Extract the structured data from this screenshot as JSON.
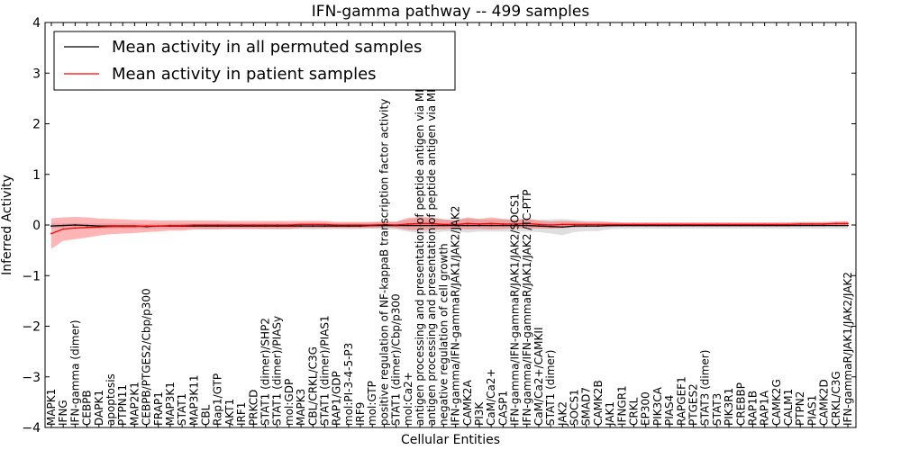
{
  "chart_data": {
    "type": "line",
    "title": "IFN-gamma pathway -- 499 samples",
    "xlabel": "Cellular Entities",
    "ylabel": "Inferred Activity",
    "ylim": [
      -4,
      4
    ],
    "yticks": [
      -4,
      -3,
      -2,
      -1,
      0,
      1,
      2,
      3,
      4
    ],
    "ytick_labels": [
      "−4",
      "−3",
      "−2",
      "−1",
      "0",
      "1",
      "2",
      "3",
      "4"
    ],
    "grid": false,
    "legend_position": "top-left",
    "categories": [
      "MAPK1",
      "IFNG",
      "IFN-gamma (dimer)",
      "CEBPB",
      "DAPK1",
      "apoptosis",
      "PTPN11",
      "MAP2K1",
      "CEBPB/PTGES2/Cbp/p300",
      "FRAP1",
      "MAP3K1",
      "STAT1",
      "MAP3K11",
      "CBL",
      "Rap1/GTP",
      "AKT1",
      "IRF1",
      "PRKCD",
      "STAT1 (dimer)/SHP2",
      "STAT1 (dimer)/PIASy",
      "mol:GDP",
      "MAPK3",
      "CBL/CRKL/C3G",
      "STAT1 (dimer)/PIAS1",
      "RAP1/GDP",
      "mol:PI-3-4-5-P3",
      "IRF9",
      "mol:GTP",
      "positive regulation of NF-kappaB transcription factor activity",
      "STAT1 (dimer)/Cbp/p300",
      "mol:Ca2+",
      "antigen processing and presentation of peptide antigen via MHC class I",
      "antigen processing and presentation of peptide antigen via MHC class II",
      "negative regulation of cell growth",
      "IFN-gamma/IFN-gammaR/JAK1/JAK2/JAK2",
      "CAMK2A",
      "PI3K",
      "CaM/Ca2+",
      "CASP1",
      "IFN-gamma/IFN-gammaR/JAK1/JAK2/SOCS1",
      "IFN-gamma/IFN-gammaR/JAK1/JAK2 /TC-PTP",
      "CaM/Ca2+/CAMKII",
      "STAT1 (dimer)",
      "JAK2",
      "SOCS1",
      "SMAD7",
      "CAMK2B",
      "JAK1",
      "IFNGR1",
      "CRKL",
      "EP300",
      "PIK3CA",
      "PIAS4",
      "RAPGEF1",
      "PTGES2",
      "STAT3 (dimer)",
      "STAT3",
      "PIK3R1",
      "CREBBP",
      "RAP1B",
      "RAP1A",
      "CAMK2G",
      "CALM1",
      "PTPN2",
      "PIAS1",
      "CAMK2D",
      "CRKL/C3G",
      "IFN-gammaR/JAK1/JAK2/JAK2"
    ],
    "series": [
      {
        "name": "Mean activity in all permuted samples",
        "color": "#000000",
        "values": [
          -0.02,
          -0.01,
          0.0,
          -0.01,
          -0.02,
          -0.02,
          -0.02,
          -0.02,
          -0.03,
          -0.02,
          -0.02,
          -0.02,
          -0.02,
          -0.02,
          -0.02,
          -0.02,
          -0.02,
          -0.02,
          -0.02,
          -0.02,
          -0.02,
          -0.02,
          -0.02,
          -0.02,
          -0.02,
          -0.02,
          -0.02,
          -0.01,
          -0.01,
          -0.01,
          -0.01,
          -0.01,
          -0.01,
          -0.01,
          -0.01,
          -0.01,
          -0.01,
          -0.01,
          -0.01,
          -0.01,
          -0.01,
          -0.02,
          -0.03,
          -0.04,
          -0.02,
          -0.02,
          -0.02,
          -0.01,
          -0.01,
          -0.01,
          -0.01,
          -0.01,
          -0.01,
          -0.01,
          -0.01,
          -0.01,
          -0.01,
          -0.01,
          -0.01,
          -0.01,
          -0.01,
          -0.01,
          -0.01,
          -0.01,
          -0.01,
          -0.01,
          -0.01,
          -0.01
        ],
        "band": [
          0.05,
          0.04,
          0.04,
          0.04,
          0.05,
          0.05,
          0.05,
          0.05,
          0.05,
          0.05,
          0.05,
          0.05,
          0.05,
          0.05,
          0.05,
          0.05,
          0.05,
          0.05,
          0.06,
          0.06,
          0.06,
          0.06,
          0.07,
          0.06,
          0.06,
          0.06,
          0.06,
          0.06,
          0.07,
          0.08,
          0.12,
          0.15,
          0.15,
          0.12,
          0.12,
          0.14,
          0.12,
          0.12,
          0.12,
          0.12,
          0.12,
          0.12,
          0.14,
          0.16,
          0.12,
          0.1,
          0.1,
          0.07,
          0.06,
          0.06,
          0.06,
          0.06,
          0.06,
          0.06,
          0.06,
          0.06,
          0.06,
          0.06,
          0.06,
          0.06,
          0.06,
          0.06,
          0.06,
          0.06,
          0.06,
          0.06,
          0.06,
          0.06
        ]
      },
      {
        "name": "Mean activity in patient samples",
        "color": "#ff0000",
        "values": [
          -0.17,
          -0.08,
          -0.06,
          -0.05,
          -0.04,
          -0.03,
          -0.03,
          -0.03,
          -0.02,
          -0.02,
          -0.01,
          -0.01,
          0.0,
          0.0,
          0.0,
          0.0,
          0.0,
          0.0,
          0.0,
          0.0,
          0.0,
          0.01,
          0.01,
          0.01,
          0.0,
          0.0,
          0.0,
          0.0,
          0.01,
          0.0,
          0.02,
          0.03,
          0.03,
          0.01,
          0.01,
          0.03,
          0.02,
          0.03,
          0.02,
          0.02,
          0.03,
          0.01,
          0.0,
          0.01,
          0.01,
          0.01,
          0.01,
          0.01,
          0.01,
          0.01,
          0.01,
          0.01,
          0.01,
          0.01,
          0.01,
          0.01,
          0.01,
          0.01,
          0.01,
          0.01,
          0.01,
          0.01,
          0.01,
          0.02,
          0.02,
          0.02,
          0.03,
          0.03
        ],
        "band": [
          0.3,
          0.23,
          0.22,
          0.2,
          0.17,
          0.15,
          0.14,
          0.13,
          0.12,
          0.11,
          0.1,
          0.1,
          0.09,
          0.09,
          0.09,
          0.08,
          0.08,
          0.08,
          0.08,
          0.08,
          0.08,
          0.07,
          0.07,
          0.07,
          0.06,
          0.06,
          0.06,
          0.06,
          0.06,
          0.06,
          0.12,
          0.13,
          0.12,
          0.1,
          0.08,
          0.12,
          0.1,
          0.12,
          0.1,
          0.08,
          0.1,
          0.08,
          0.07,
          0.07,
          0.06,
          0.05,
          0.05,
          0.05,
          0.04,
          0.04,
          0.04,
          0.04,
          0.04,
          0.04,
          0.04,
          0.04,
          0.04,
          0.04,
          0.04,
          0.04,
          0.04,
          0.04,
          0.04,
          0.04,
          0.04,
          0.04,
          0.04,
          0.05
        ]
      }
    ]
  }
}
